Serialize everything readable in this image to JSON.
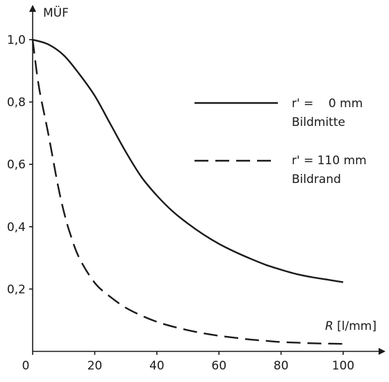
{
  "chart_data": {
    "type": "line",
    "title": "",
    "ylabel": "MÜF",
    "xlabel_italic": "R",
    "xlabel_unit": " [l/mm]",
    "xlim": [
      0,
      100
    ],
    "ylim": [
      0,
      1.0
    ],
    "x_ticks": [
      0,
      20,
      40,
      60,
      80,
      100
    ],
    "x_tick_labels": [
      "0",
      "20",
      "40",
      "60",
      "80",
      "100"
    ],
    "y_ticks": [
      0.2,
      0.4,
      0.6,
      0.8,
      1.0
    ],
    "y_tick_labels": [
      "0,2",
      "0,4",
      "0,6",
      "0,8",
      "1,0"
    ],
    "grid": false,
    "legend_position": "right",
    "series": [
      {
        "name": "r' =    0 mm",
        "label_line2": "Bildmitte",
        "style": "solid",
        "color": "#1a1a1a",
        "x": [
          0,
          5,
          10,
          15,
          20,
          25,
          30,
          35,
          40,
          45,
          50,
          55,
          60,
          65,
          70,
          75,
          80,
          85,
          90,
          95,
          100
        ],
        "y": [
          1.0,
          0.985,
          0.95,
          0.89,
          0.82,
          0.73,
          0.64,
          0.56,
          0.5,
          0.45,
          0.41,
          0.375,
          0.345,
          0.32,
          0.298,
          0.278,
          0.262,
          0.248,
          0.238,
          0.23,
          0.222
        ]
      },
      {
        "name": "r' = 110 mm",
        "label_line2": "Bildrand",
        "style": "dashed",
        "color": "#1a1a1a",
        "x": [
          0,
          2,
          5,
          8,
          10,
          12,
          15,
          20,
          25,
          30,
          35,
          40,
          45,
          50,
          55,
          60,
          65,
          70,
          75,
          80,
          85,
          90,
          95,
          100
        ],
        "y": [
          1.0,
          0.85,
          0.7,
          0.54,
          0.45,
          0.38,
          0.3,
          0.22,
          0.175,
          0.14,
          0.115,
          0.095,
          0.08,
          0.068,
          0.058,
          0.05,
          0.044,
          0.038,
          0.034,
          0.03,
          0.028,
          0.026,
          0.025,
          0.024
        ]
      }
    ]
  }
}
